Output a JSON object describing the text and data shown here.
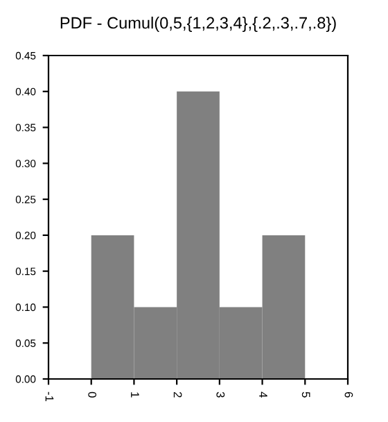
{
  "chart_data": {
    "type": "histogram",
    "title": "PDF - Cumul(0,5,{1,2,3,4},{.2,.3,.7,.8})",
    "bins": [
      0,
      1,
      2,
      3,
      4,
      5
    ],
    "values": [
      0.2,
      0.1,
      0.4,
      0.1,
      0.2
    ],
    "color": "#808080",
    "xlim": [
      -1,
      6
    ],
    "xticks": [
      -1,
      0,
      1,
      2,
      3,
      4,
      5,
      6
    ],
    "ylim": [
      0,
      0.45
    ],
    "yticks": [
      {
        "value": 0,
        "label": "0.00"
      },
      {
        "value": 0.05,
        "label": "0.05"
      },
      {
        "value": 0.1,
        "label": "0.10"
      },
      {
        "value": 0.15,
        "label": "0.15"
      },
      {
        "value": 0.2,
        "label": "0.20"
      },
      {
        "value": 0.25,
        "label": "0.25"
      },
      {
        "value": 0.3,
        "label": "0.30"
      },
      {
        "value": 0.35,
        "label": "0.35"
      },
      {
        "value": 0.4,
        "label": "0.40"
      },
      {
        "value": 0.45,
        "label": "0.45"
      }
    ],
    "grid": false
  }
}
